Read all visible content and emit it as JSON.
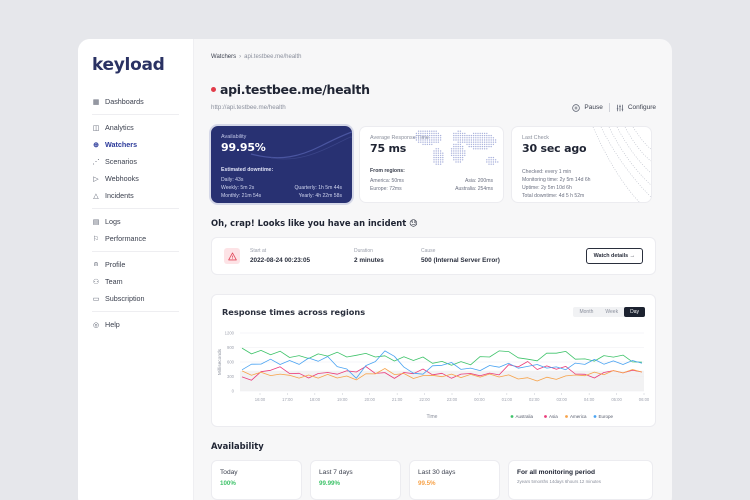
{
  "brand": {
    "logo": "keyload"
  },
  "sidebar": {
    "groups": [
      [
        {
          "label": "Dashboards",
          "icon": "grid-icon"
        }
      ],
      [
        {
          "label": "Analytics",
          "icon": "chart-icon"
        },
        {
          "label": "Watchers",
          "icon": "globe-icon",
          "active": true
        },
        {
          "label": "Scenarios",
          "icon": "share-icon"
        },
        {
          "label": "Webhooks",
          "icon": "webhook-icon"
        },
        {
          "label": "Incidents",
          "icon": "warning-icon"
        }
      ],
      [
        {
          "label": "Logs",
          "icon": "clipboard-icon"
        },
        {
          "label": "Performance",
          "icon": "flag-icon"
        }
      ],
      [
        {
          "label": "Profile",
          "icon": "user-icon"
        },
        {
          "label": "Team",
          "icon": "team-icon"
        },
        {
          "label": "Subscription",
          "icon": "card-icon"
        }
      ],
      [
        {
          "label": "Help",
          "icon": "help-icon"
        }
      ]
    ]
  },
  "breadcrumb": {
    "root": "Watchers",
    "separator": "›",
    "current": "api.testbee.me/health"
  },
  "header": {
    "title": "api.testbee.me/health",
    "status_color": "#e23c4a",
    "url": "http://api.testbee.me/health",
    "pause_label": "Pause",
    "configure_label": "Configure"
  },
  "stats": {
    "availability": {
      "label": "Availability",
      "value": "99.95%",
      "sub_title": "Estimated downtime:",
      "daily": "Daily: 43s",
      "weekly": "Weekly: 5m 2s",
      "quarterly": "Quarterly: 1h 5m 44s",
      "monthly": "Monthly: 21m 54s",
      "yearly": "Yearly: 4h 22m 58s"
    },
    "response": {
      "label": "Average Response Time",
      "value": "75 ms",
      "sub_title": "From regions:",
      "america": "America: 50ms",
      "asia": "Asia: 200ms",
      "europe": "Europe: 72ms",
      "australia": "Australia: 254ms"
    },
    "last_check": {
      "label": "Last Check",
      "value": "30 sec ago",
      "checked": "Checked: every 1 min",
      "monitoring": "Monitoring time: 2y 5m 14d 6h",
      "uptime": "Uptime: 2y 5m 10d 6h",
      "downtime": "Total downtime: 4d 5 h 52m"
    }
  },
  "incident": {
    "heading": "Oh, crap! Looks like you have an incident 😓",
    "start_label": "Start at",
    "start_value": "2022-08-24 00:23:05",
    "duration_label": "Duration",
    "duration_value": "2 minutes",
    "cause_label": "Cause",
    "cause_value": "500 (Internal Server Error)",
    "button": "Watch details →"
  },
  "chart_section": {
    "title": "Response times across regions",
    "ranges": [
      "Month",
      "Week",
      "Day"
    ],
    "active_range": "Day"
  },
  "chart_data": {
    "type": "line",
    "title": "Response times across regions",
    "xlabel": "Time",
    "ylabel": "Milliseconds",
    "ylim": [
      0,
      1200
    ],
    "yticks": [
      0,
      300,
      600,
      900,
      1200
    ],
    "categories": [
      "16:00",
      "17:00",
      "18:00",
      "19:00",
      "20:00",
      "21:00",
      "22:00",
      "23:00",
      "00:00",
      "01:00",
      "02:00",
      "03:00",
      "04:00",
      "05:00",
      "06:00"
    ],
    "grid": true,
    "legend_position": "bottom-right",
    "series": [
      {
        "name": "Australia",
        "color": "#3fc36a",
        "values": [
          870,
          760,
          720,
          740,
          730,
          710,
          640,
          600,
          560,
          820,
          640,
          790,
          650,
          720,
          590
        ]
      },
      {
        "name": "Asia",
        "color": "#ea3b7a",
        "values": [
          260,
          450,
          340,
          360,
          420,
          350,
          380,
          340,
          340,
          360,
          580,
          470,
          320,
          400,
          420
        ]
      },
      {
        "name": "America",
        "color": "#f7a34a",
        "values": [
          380,
          350,
          280,
          300,
          270,
          430,
          290,
          310,
          300,
          330,
          240,
          270,
          330,
          380,
          430
        ]
      },
      {
        "name": "Europe",
        "color": "#4aa3f2",
        "values": [
          430,
          640,
          560,
          700,
          280,
          820,
          350,
          540,
          460,
          510,
          500,
          480,
          560,
          610,
          590
        ]
      }
    ]
  },
  "availability": {
    "title": "Availability",
    "cards": [
      {
        "label": "Today",
        "value": "100%",
        "color": "#3fc36a"
      },
      {
        "label": "Last 7 days",
        "value": "99.99%",
        "color": "#3fc36a"
      },
      {
        "label": "Last 30 days",
        "value": "99.5%",
        "color": "#f7a34a"
      }
    ],
    "overall": {
      "title": "For all monitoring period",
      "sub": "2years 5months 14days 6hours 12 minutes"
    }
  }
}
